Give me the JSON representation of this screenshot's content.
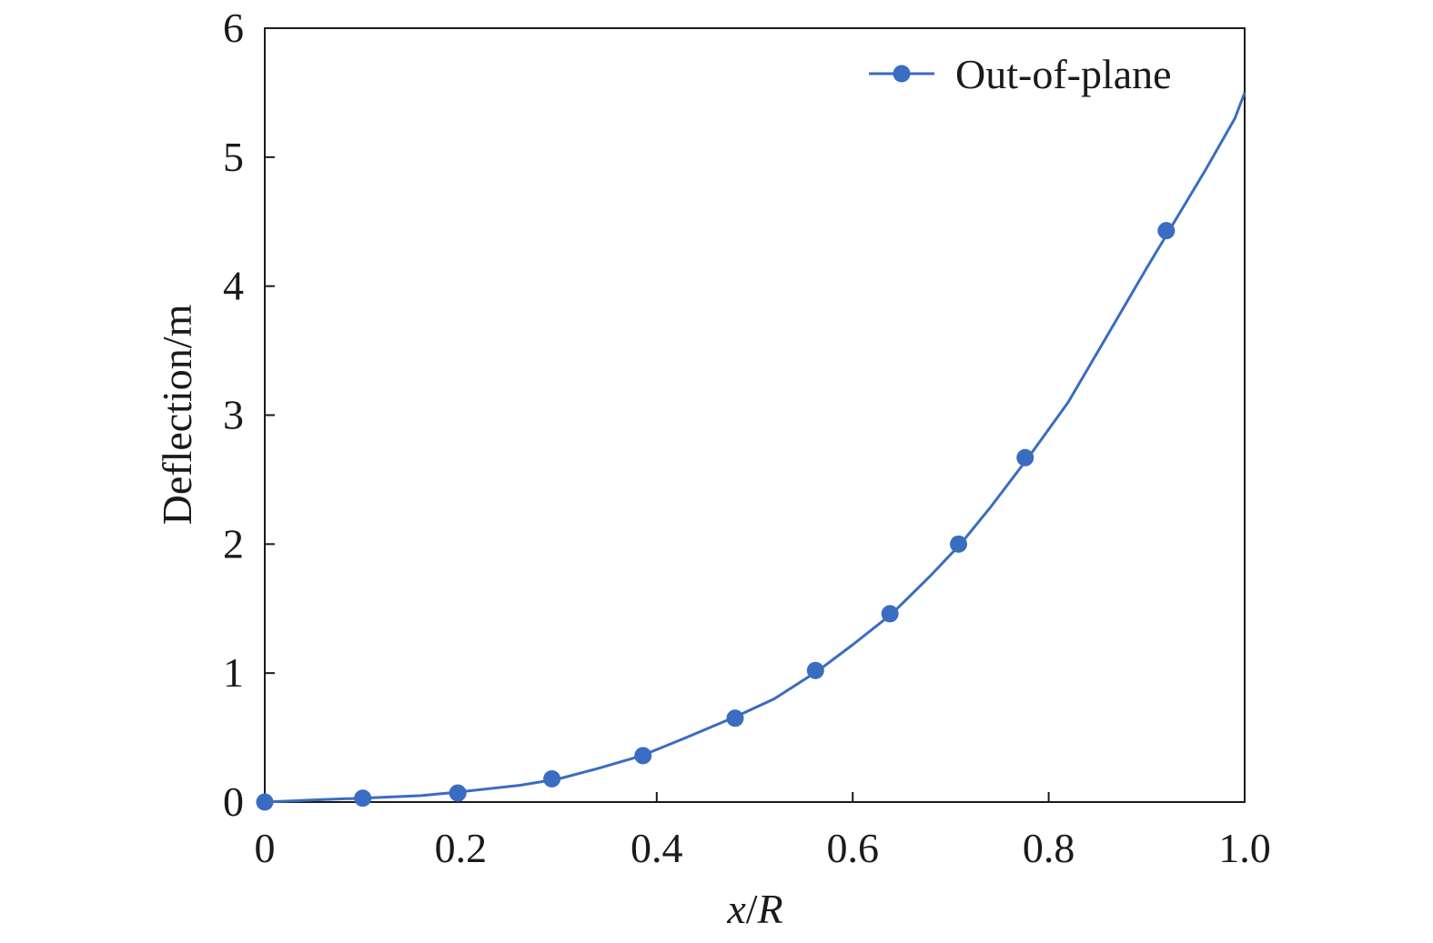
{
  "chart_data": {
    "type": "line",
    "title": "",
    "xlabel_parts": [
      "x",
      "/",
      "R"
    ],
    "ylabel": "Deflection/m",
    "xlim": [
      0,
      1.0
    ],
    "ylim": [
      0,
      6
    ],
    "x_ticks": [
      0,
      0.2,
      0.4,
      0.6,
      0.8,
      1.0
    ],
    "x_tick_labels": [
      "0",
      "0.2",
      "0.4",
      "0.6",
      "0.8",
      "1.0"
    ],
    "y_ticks": [
      0,
      1,
      2,
      3,
      4,
      5,
      6
    ],
    "y_tick_labels": [
      "0",
      "1",
      "2",
      "3",
      "4",
      "5",
      "6"
    ],
    "grid": false,
    "legend_position": "top-right",
    "series": [
      {
        "name": "Out-of-plane",
        "color": "#3a6cc2",
        "line_x": [
          0,
          0.06,
          0.1,
          0.16,
          0.2,
          0.26,
          0.3,
          0.34,
          0.385,
          0.43,
          0.48,
          0.52,
          0.565,
          0.6,
          0.64,
          0.68,
          0.71,
          0.74,
          0.78,
          0.82,
          0.86,
          0.9,
          0.93,
          0.96,
          0.99,
          1.0
        ],
        "line_y": [
          0,
          0.02,
          0.03,
          0.05,
          0.08,
          0.13,
          0.18,
          0.26,
          0.36,
          0.5,
          0.66,
          0.8,
          1.02,
          1.22,
          1.46,
          1.76,
          2.0,
          2.28,
          2.68,
          3.1,
          3.62,
          4.14,
          4.52,
          4.9,
          5.3,
          5.5
        ],
        "marker_x": [
          0,
          0.1,
          0.197,
          0.293,
          0.386,
          0.48,
          0.562,
          0.638,
          0.708,
          0.776,
          0.92
        ],
        "marker_y": [
          0,
          0.03,
          0.07,
          0.18,
          0.36,
          0.65,
          1.02,
          1.46,
          2.0,
          2.67,
          4.43
        ]
      }
    ]
  }
}
